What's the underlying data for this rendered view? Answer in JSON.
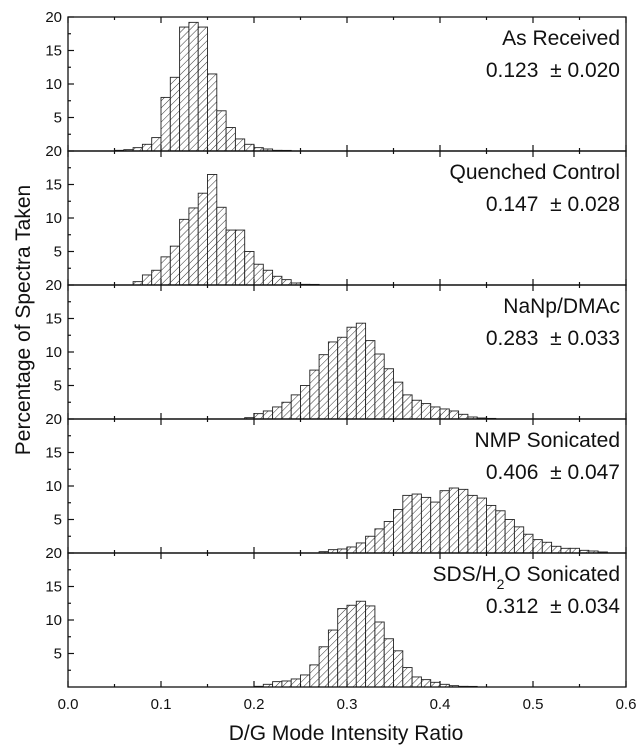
{
  "chart_data": {
    "type": "bar",
    "xlabel": "D/G Mode Intensity Ratio",
    "ylabel": "Percentage of Spectra Taken",
    "xlim": [
      0.0,
      0.6
    ],
    "ylim": [
      0,
      20
    ],
    "bin_width": 0.01,
    "x_ticks": [
      "0.0",
      "0.1",
      "0.2",
      "0.3",
      "0.4",
      "0.5",
      "0.6"
    ],
    "y_ticks": [
      "5",
      "10",
      "15",
      "20"
    ],
    "panels": [
      {
        "name": "As Received",
        "stats": "0.123  ± 0.020",
        "bins_start": 0.05,
        "values": [
          0.1,
          0.2,
          0.5,
          1,
          2,
          8,
          11,
          18.5,
          19.2,
          18.5,
          11.5,
          6,
          3.5,
          1.8,
          1.0,
          0.5,
          0.3,
          0.1,
          0.05
        ]
      },
      {
        "name": "Quenched Control",
        "stats": "0.147  ± 0.028",
        "bins_start": 0.07,
        "values": [
          0.5,
          1.5,
          2.2,
          4.2,
          5.8,
          9.8,
          11.5,
          13.7,
          16.5,
          11.6,
          8.2,
          8.2,
          5,
          3.1,
          2.2,
          1.3,
          0.8,
          0.3,
          0.1,
          0.05
        ]
      },
      {
        "name": "NaNp/DMAc",
        "stats": "0.283  ± 0.033",
        "bins_start": 0.19,
        "values": [
          0.2,
          0.8,
          1.2,
          1.8,
          2.5,
          3.6,
          5,
          7.3,
          9.6,
          11.5,
          12.2,
          13.7,
          14.3,
          11.7,
          9.7,
          7.5,
          5.5,
          3.6,
          2.8,
          2.3,
          1.8,
          1.5,
          1.2,
          0.7,
          0.3,
          0.15,
          0.05
        ]
      },
      {
        "name": "NMP Sonicated",
        "stats": "0.406  ± 0.047",
        "bins_start": 0.27,
        "values": [
          0.2,
          0.5,
          0.6,
          0.9,
          1.5,
          2.5,
          3.6,
          4.7,
          6.5,
          8.6,
          8.8,
          8.3,
          7.6,
          9.3,
          9.7,
          9.5,
          8.6,
          8.2,
          7.1,
          6.3,
          5.0,
          3.9,
          2.8,
          2.0,
          1.6,
          1.0,
          0.7,
          0.7,
          0.4,
          0.3,
          0.15
        ]
      },
      {
        "name": "SDS/H2O Sonicated",
        "name_parts": [
          "SDS/H",
          "2",
          "O Sonicated"
        ],
        "stats": "0.312  ± 0.034",
        "bins_start": 0.2,
        "values": [
          0.1,
          0.4,
          0.8,
          0.9,
          1.2,
          1.8,
          3.3,
          6,
          8.5,
          11.7,
          12.2,
          12.8,
          12.1,
          9.7,
          7.2,
          5.4,
          2.9,
          1.5,
          1.1,
          0.7,
          0.4,
          0.2,
          0.1,
          0.05
        ]
      }
    ]
  }
}
